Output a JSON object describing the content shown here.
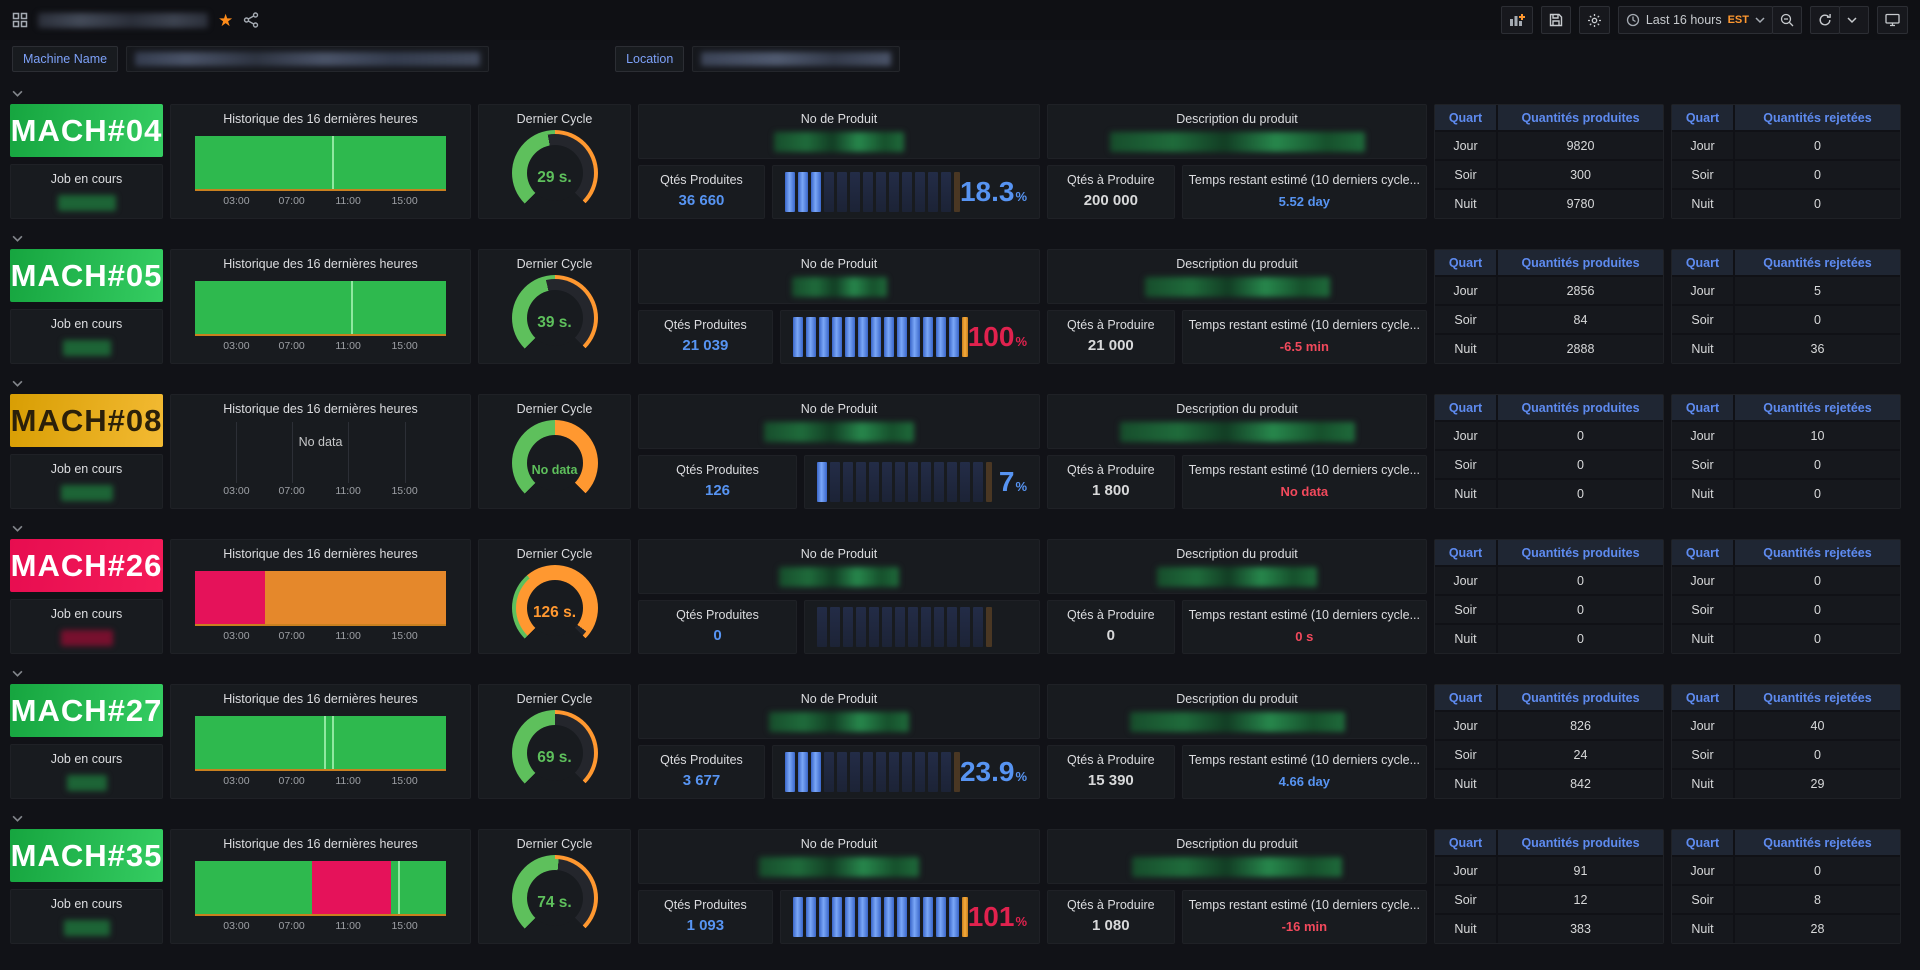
{
  "header": {
    "title_redacted": true,
    "time_range_label": "Last 16 hours",
    "timezone": "EST"
  },
  "filters": {
    "machine_name_label": "Machine Name",
    "location_label": "Location"
  },
  "labels": {
    "job_label": "Job en cours",
    "history_title": "Historique des 16 dernières heures",
    "last_cycle_title": "Dernier Cycle",
    "product_no_title": "No de Produit",
    "product_desc_title": "Description du produit",
    "qty_produced_label": "Qtés Produites",
    "qty_to_produce_label": "Qtés à Produire",
    "time_remaining_label": "Temps restant estimé (10 derniers cycle...",
    "no_data": "No data",
    "percent_unit": "%",
    "axis_ticks": [
      "03:00",
      "07:00",
      "11:00",
      "15:00"
    ],
    "shifts": [
      "Jour",
      "Soir",
      "Nuit"
    ],
    "table_produced": {
      "col1": "Quart",
      "col2": "Quantités produites"
    },
    "table_rejected": {
      "col1": "Quart",
      "col2": "Quantités rejetées"
    }
  },
  "config": {
    "bars_total": 13
  },
  "colors": {
    "blue": "#5794f2",
    "red_big": "#e0224e",
    "pink": "#f2495c",
    "gauge_green": "#5ec05c",
    "gauge_orange": "#ff9830",
    "gauge_track": "#24262c",
    "hist": {
      "green": "#2eb94e",
      "light": "#8fe8a0",
      "pink": "#e5125a",
      "orange": "#e5882b"
    },
    "redact_green": "#1d6436",
    "redact_red": "#77102e"
  },
  "machines": [
    {
      "name": "MACH#04",
      "panel": {
        "from": "#16a53f",
        "to": "#35cd62",
        "text": "#ffffff"
      },
      "job_redact": {
        "color": "green",
        "width": 58
      },
      "history": {
        "no_data": false,
        "segments": [
          {
            "c": "green",
            "w": 0.545
          },
          {
            "c": "light",
            "w": 0.008
          },
          {
            "c": "green",
            "w": 0.447
          }
        ]
      },
      "gauge": {
        "value": "29 s.",
        "no_data": false,
        "color": "green",
        "fill": 0.46,
        "ring_green": 0.5
      },
      "qty_produced": "36 660",
      "percent": "18.3",
      "percent_color": "blue",
      "bars_lit": 3,
      "bars_overflow": false,
      "qty_to_produce": "200 000",
      "time_remaining": "5.52 day",
      "time_color": "blue",
      "produced": [
        "9820",
        "300",
        "9780"
      ],
      "rejected": [
        "0",
        "0",
        "0"
      ],
      "redact_no_width": 130,
      "redact_desc_width": 255
    },
    {
      "name": "MACH#05",
      "panel": {
        "from": "#16a53f",
        "to": "#35cd62",
        "text": "#ffffff"
      },
      "job_redact": {
        "color": "green",
        "width": 48
      },
      "history": {
        "no_data": false,
        "segments": [
          {
            "c": "green",
            "w": 0.62
          },
          {
            "c": "light",
            "w": 0.008
          },
          {
            "c": "green",
            "w": 0.372
          }
        ]
      },
      "gauge": {
        "value": "39 s.",
        "no_data": false,
        "color": "green",
        "fill": 0.45,
        "ring_green": 0.5
      },
      "qty_produced": "21 039",
      "percent": "100",
      "percent_color": "red",
      "bars_lit": 13,
      "bars_overflow": true,
      "qty_to_produce": "21 000",
      "time_remaining": "-6.5 min",
      "time_color": "red",
      "produced": [
        "2856",
        "84",
        "2888"
      ],
      "rejected": [
        "5",
        "0",
        "36"
      ],
      "redact_no_width": 95,
      "redact_desc_width": 185
    },
    {
      "name": "MACH#08",
      "panel": {
        "from": "#d89e03",
        "to": "#f3ba33",
        "text": "#2b200a"
      },
      "job_redact": {
        "color": "green",
        "width": 52
      },
      "history": {
        "no_data": true,
        "segments": []
      },
      "gauge": {
        "value": "No data",
        "no_data": true,
        "color": "green",
        "fill": 0,
        "ring_green": 0.5
      },
      "qty_produced": "126",
      "percent": "7",
      "percent_color": "blue",
      "bars_lit": 1,
      "bars_overflow": false,
      "qty_to_produce": "1 800",
      "time_remaining": "No data",
      "time_color": "red",
      "produced": [
        "0",
        "0",
        "0"
      ],
      "rejected": [
        "10",
        "0",
        "0"
      ],
      "redact_no_width": 150,
      "redact_desc_width": 235
    },
    {
      "name": "MACH#26",
      "panel": {
        "from": "#e70d50",
        "to": "#f41b59",
        "text": "#ffffff"
      },
      "job_redact": {
        "color": "red",
        "width": 52
      },
      "history": {
        "no_data": false,
        "segments": [
          {
            "c": "pink",
            "w": 0.28
          },
          {
            "c": "orange",
            "w": 0.72
          }
        ]
      },
      "gauge": {
        "value": "126 s.",
        "no_data": false,
        "color": "orange",
        "fill": 0.97,
        "ring_green": 0.35
      },
      "qty_produced": "0",
      "percent": "",
      "percent_color": "blue",
      "bars_lit": 0,
      "bars_overflow": false,
      "qty_to_produce": "0",
      "time_remaining": "0 s",
      "time_color": "red",
      "produced": [
        "0",
        "0",
        "0"
      ],
      "rejected": [
        "0",
        "0",
        "0"
      ],
      "redact_no_width": 120,
      "redact_desc_width": 160
    },
    {
      "name": "MACH#27",
      "panel": {
        "from": "#16a53f",
        "to": "#35cd62",
        "text": "#ffffff"
      },
      "job_redact": {
        "color": "green",
        "width": 40
      },
      "history": {
        "no_data": false,
        "segments": [
          {
            "c": "green",
            "w": 0.515
          },
          {
            "c": "light",
            "w": 0.007
          },
          {
            "c": "green",
            "w": 0.025
          },
          {
            "c": "light",
            "w": 0.007
          },
          {
            "c": "green",
            "w": 0.446
          }
        ]
      },
      "gauge": {
        "value": "69 s.",
        "no_data": false,
        "color": "green",
        "fill": 0.5,
        "ring_green": 0.5
      },
      "qty_produced": "3 677",
      "percent": "23.9",
      "percent_color": "blue",
      "bars_lit": 3,
      "bars_overflow": false,
      "qty_to_produce": "15 390",
      "time_remaining": "4.66 day",
      "time_color": "blue",
      "produced": [
        "826",
        "24",
        "842"
      ],
      "rejected": [
        "40",
        "0",
        "29"
      ],
      "redact_no_width": 140,
      "redact_desc_width": 215
    },
    {
      "name": "MACH#35",
      "panel": {
        "from": "#16a53f",
        "to": "#35cd62",
        "text": "#ffffff"
      },
      "job_redact": {
        "color": "green",
        "width": 46
      },
      "history": {
        "no_data": false,
        "segments": [
          {
            "c": "green",
            "w": 0.465
          },
          {
            "c": "pink",
            "w": 0.315
          },
          {
            "c": "green",
            "w": 0.03
          },
          {
            "c": "light",
            "w": 0.008
          },
          {
            "c": "green",
            "w": 0.182
          }
        ]
      },
      "gauge": {
        "value": "74 s.",
        "no_data": false,
        "color": "green",
        "fill": 0.52,
        "ring_green": 0.5
      },
      "qty_produced": "1 093",
      "percent": "101",
      "percent_color": "red",
      "bars_lit": 13,
      "bars_overflow": true,
      "qty_to_produce": "1 080",
      "time_remaining": "-16 min",
      "time_color": "red",
      "produced": [
        "91",
        "12",
        "383"
      ],
      "rejected": [
        "0",
        "8",
        "28"
      ],
      "redact_no_width": 160,
      "redact_desc_width": 210
    }
  ]
}
